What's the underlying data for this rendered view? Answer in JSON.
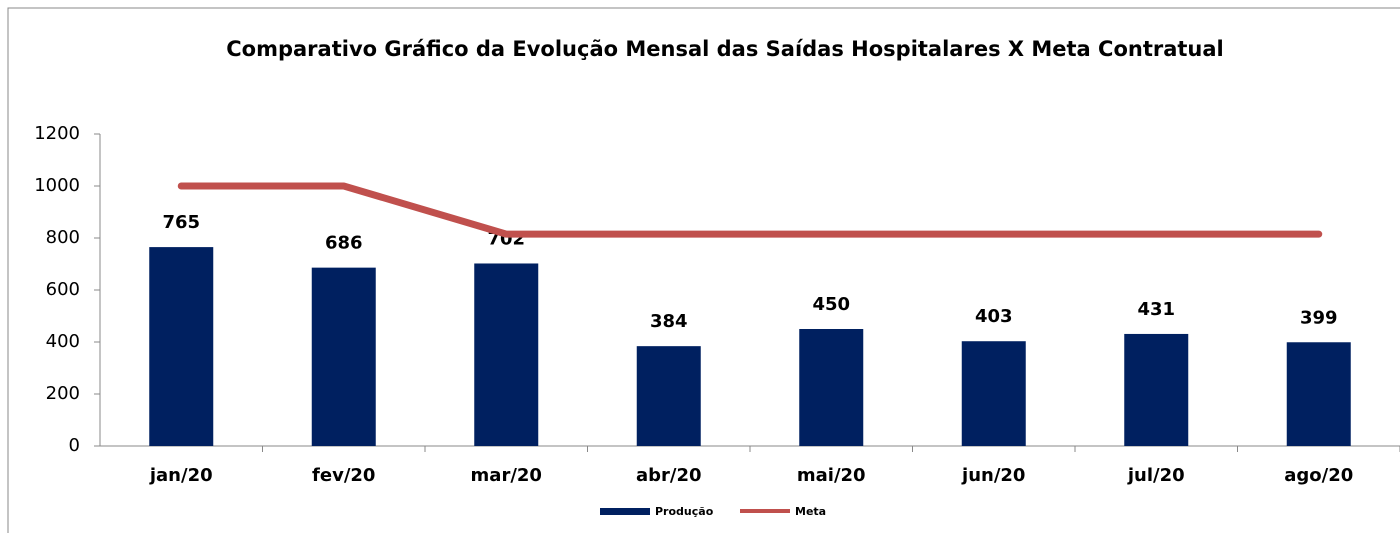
{
  "chart_data": {
    "type": "bar",
    "title": "Comparativo Gráfico da Evolução Mensal das Saídas Hospitalares X Meta Contratual",
    "categories": [
      "jan/20",
      "fev/20",
      "mar/20",
      "abr/20",
      "mai/20",
      "jun/20",
      "jul/20",
      "ago/20"
    ],
    "series": [
      {
        "name": "Produção",
        "type": "bar",
        "color": "#002060",
        "values": [
          765,
          686,
          702,
          384,
          450,
          403,
          431,
          399
        ],
        "data_labels": true
      },
      {
        "name": "Meta",
        "type": "line",
        "color": "#c0504d",
        "values": [
          1000,
          1000,
          815,
          815,
          815,
          815,
          815,
          815
        ]
      }
    ],
    "ylim": [
      0,
      1200
    ],
    "yticks": [
      0,
      200,
      400,
      600,
      800,
      1000,
      1200
    ],
    "grid": false,
    "legend": "bottom"
  }
}
